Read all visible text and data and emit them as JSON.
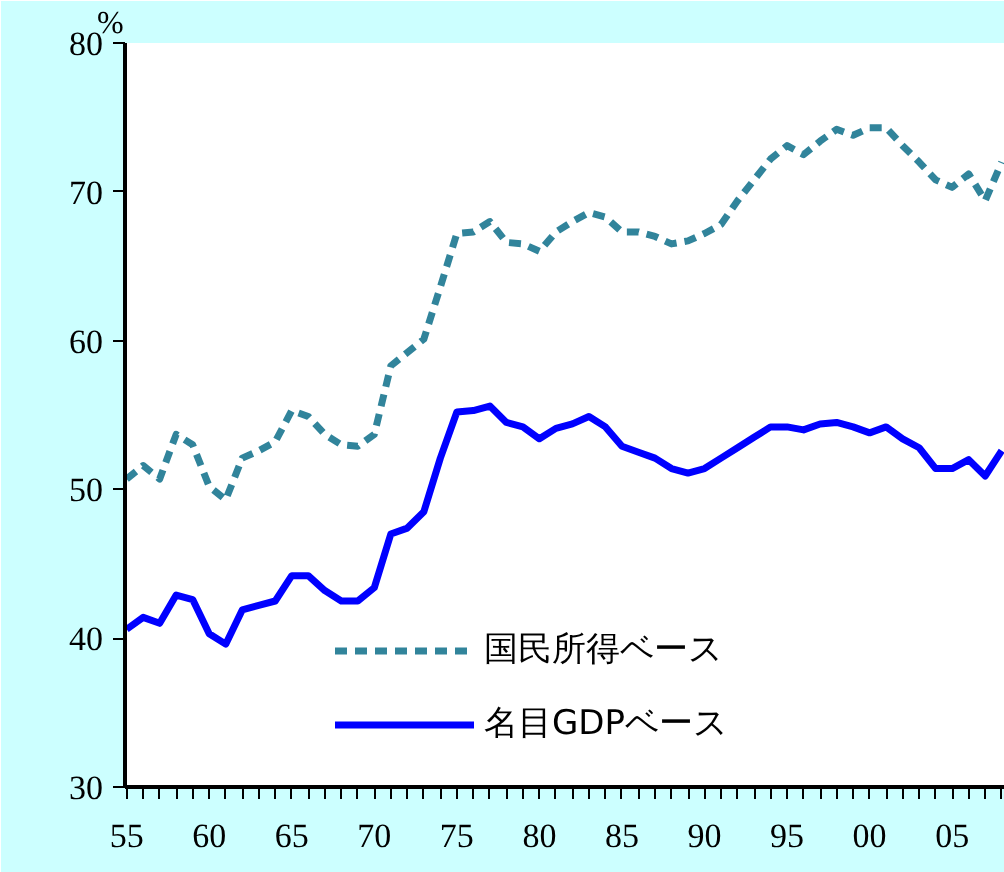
{
  "chart_data": {
    "type": "line",
    "ylabel": "%",
    "x": [
      1955,
      1956,
      1957,
      1958,
      1959,
      1960,
      1961,
      1962,
      1963,
      1964,
      1965,
      1966,
      1967,
      1968,
      1969,
      1970,
      1971,
      1972,
      1973,
      1974,
      1975,
      1976,
      1977,
      1978,
      1979,
      1980,
      1981,
      1982,
      1983,
      1984,
      1985,
      1986,
      1987,
      1988,
      1989,
      1990,
      1991,
      1992,
      1993,
      1994,
      1995,
      1996,
      1997,
      1998,
      1999,
      2000,
      2001,
      2002,
      2003,
      2004,
      2005,
      2006,
      2007,
      2008
    ],
    "series": [
      {
        "name": "国民所得ベース",
        "color": "#31849b",
        "line_style": "dashed",
        "values": [
          50.7,
          51.6,
          50.7,
          53.7,
          53.0,
          50.2,
          49.3,
          52.1,
          52.6,
          53.2,
          55.3,
          54.9,
          53.7,
          53.0,
          52.9,
          53.7,
          58.3,
          59.2,
          60.1,
          63.6,
          67.2,
          67.3,
          68.0,
          66.6,
          66.5,
          66.0,
          67.3,
          68.0,
          68.6,
          68.3,
          67.3,
          67.3,
          67.0,
          66.5,
          66.7,
          67.2,
          67.8,
          69.4,
          70.8,
          72.2,
          73.1,
          72.5,
          73.4,
          74.2,
          73.8,
          74.3,
          74.3,
          73.1,
          72.0,
          70.8,
          70.3,
          71.2,
          69.4,
          72.0
        ]
      },
      {
        "name": "名目GDPベース",
        "color": "#0000ff",
        "line_style": "solid",
        "values": [
          40.6,
          41.4,
          41.0,
          42.9,
          42.6,
          40.3,
          39.6,
          41.9,
          42.2,
          42.5,
          44.2,
          44.2,
          43.2,
          42.5,
          42.5,
          43.4,
          47.0,
          47.4,
          48.5,
          52.1,
          55.2,
          55.3,
          55.6,
          54.5,
          54.2,
          53.4,
          54.1,
          54.4,
          54.9,
          54.2,
          52.9,
          52.5,
          52.1,
          51.4,
          51.1,
          51.4,
          52.1,
          52.8,
          53.5,
          54.2,
          54.2,
          54.0,
          54.4,
          54.5,
          54.2,
          53.8,
          54.2,
          53.4,
          52.8,
          51.4,
          51.4,
          52.0,
          50.9,
          52.6
        ]
      }
    ],
    "xlim": [
      1954.9,
      2008.2
    ],
    "xticks": [
      {
        "value": 1955,
        "label": "55"
      },
      {
        "value": 1956,
        "label": null
      },
      {
        "value": 1957,
        "label": null
      },
      {
        "value": 1958,
        "label": null
      },
      {
        "value": 1959,
        "label": null
      },
      {
        "value": 1960,
        "label": "60"
      },
      {
        "value": 1961,
        "label": null
      },
      {
        "value": 1962,
        "label": null
      },
      {
        "value": 1963,
        "label": null
      },
      {
        "value": 1964,
        "label": null
      },
      {
        "value": 1965,
        "label": "65"
      },
      {
        "value": 1966,
        "label": null
      },
      {
        "value": 1967,
        "label": null
      },
      {
        "value": 1968,
        "label": null
      },
      {
        "value": 1969,
        "label": null
      },
      {
        "value": 1970,
        "label": "70"
      },
      {
        "value": 1971,
        "label": null
      },
      {
        "value": 1972,
        "label": null
      },
      {
        "value": 1973,
        "label": null
      },
      {
        "value": 1974,
        "label": null
      },
      {
        "value": 1975,
        "label": "75"
      },
      {
        "value": 1976,
        "label": null
      },
      {
        "value": 1977,
        "label": null
      },
      {
        "value": 1978,
        "label": null
      },
      {
        "value": 1979,
        "label": null
      },
      {
        "value": 1980,
        "label": "80"
      },
      {
        "value": 1981,
        "label": null
      },
      {
        "value": 1982,
        "label": null
      },
      {
        "value": 1983,
        "label": null
      },
      {
        "value": 1984,
        "label": null
      },
      {
        "value": 1985,
        "label": "85"
      },
      {
        "value": 1986,
        "label": null
      },
      {
        "value": 1987,
        "label": null
      },
      {
        "value": 1988,
        "label": null
      },
      {
        "value": 1989,
        "label": null
      },
      {
        "value": 1990,
        "label": "90"
      },
      {
        "value": 1991,
        "label": null
      },
      {
        "value": 1992,
        "label": null
      },
      {
        "value": 1993,
        "label": null
      },
      {
        "value": 1994,
        "label": null
      },
      {
        "value": 1995,
        "label": "95"
      },
      {
        "value": 1996,
        "label": null
      },
      {
        "value": 1997,
        "label": null
      },
      {
        "value": 1998,
        "label": null
      },
      {
        "value": 1999,
        "label": null
      },
      {
        "value": 2000,
        "label": "00"
      },
      {
        "value": 2001,
        "label": null
      },
      {
        "value": 2002,
        "label": null
      },
      {
        "value": 2003,
        "label": null
      },
      {
        "value": 2004,
        "label": null
      },
      {
        "value": 2005,
        "label": "05"
      },
      {
        "value": 2006,
        "label": null
      },
      {
        "value": 2007,
        "label": null
      },
      {
        "value": 2008,
        "label": null
      }
    ],
    "ylim": [
      30,
      80
    ],
    "yticks": [
      30,
      40,
      50,
      60,
      70,
      80
    ],
    "grid": false,
    "legend": "bottom",
    "marker": "none"
  }
}
